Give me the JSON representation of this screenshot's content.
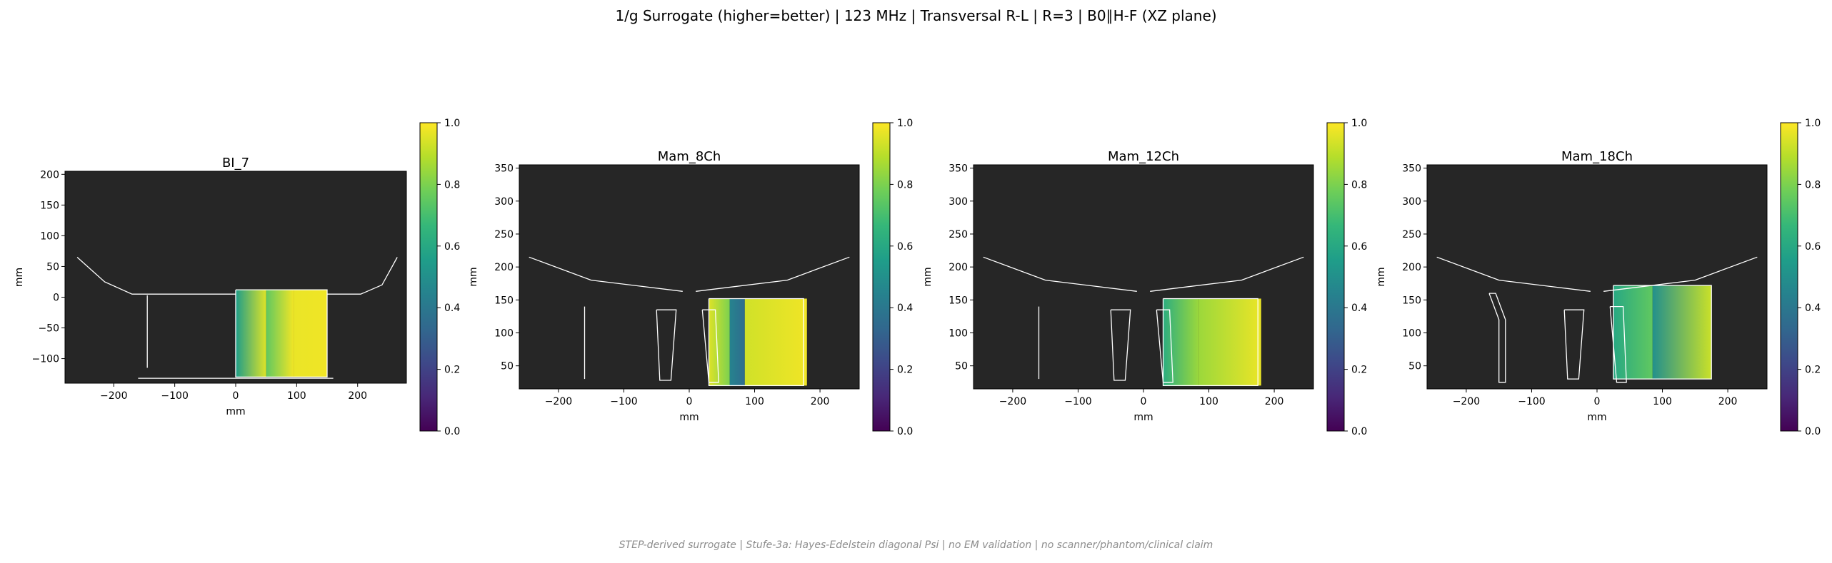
{
  "figure": {
    "suptitle": "1/g Surrogate (higher=better) | 123 MHz | Transversal R-L | R=3 | B0∥H-F (XZ plane)",
    "footer": "STEP-derived surrogate | Stufe-3a: Hayes-Edelstein diagonal Psi | no EM validation | no scanner/phantom/clinical claim"
  },
  "colors": {
    "plot_background": "#262626",
    "coil_outline": "#ffffff",
    "colormap": "viridis",
    "viridis": [
      "#440154",
      "#482878",
      "#3e4989",
      "#31688e",
      "#26828e",
      "#1f9e89",
      "#35b779",
      "#6ece58",
      "#b5de2b",
      "#fde725"
    ]
  },
  "chart_data": [
    {
      "type": "heatmap",
      "title": "BI_7",
      "xlabel": "mm",
      "ylabel": "mm",
      "xlim": [
        -280,
        280
      ],
      "ylim": [
        -140,
        205
      ],
      "xticks": [
        "-200",
        "-100",
        "0",
        "100",
        "200"
      ],
      "yticks": [
        "-100",
        "-50",
        "0",
        "50",
        "100",
        "150",
        "200"
      ],
      "xtick_values": [
        -200,
        -100,
        0,
        100,
        200
      ],
      "ytick_values": [
        -100,
        -50,
        0,
        50,
        100,
        150,
        200
      ],
      "colorbar": {
        "range": [
          0.0,
          1.0
        ],
        "ticks": [
          "0.0",
          "0.2",
          "0.4",
          "0.6",
          "0.8",
          "1.0"
        ]
      },
      "map_region": {
        "x": [
          0,
          150
        ],
        "y": [
          -130,
          12
        ]
      },
      "map_regions": [
        {
          "x": [
            0,
            50
          ],
          "stops": [
            0.55,
            0.95
          ]
        },
        {
          "x": [
            50,
            95
          ],
          "stops": [
            0.75,
            0.98
          ]
        },
        {
          "x": [
            95,
            150
          ],
          "stops": [
            0.97,
            0.98
          ]
        }
      ],
      "map_mean_value": 0.85,
      "coil_outlines": [
        [
          [
            -260,
            65
          ],
          [
            -215,
            25
          ],
          [
            -170,
            5
          ],
          [
            0,
            5
          ]
        ],
        [
          [
            150,
            5
          ],
          [
            205,
            5
          ],
          [
            240,
            20
          ],
          [
            265,
            65
          ]
        ],
        [
          [
            -145,
            3
          ],
          [
            -145,
            -115
          ]
        ],
        [
          [
            -160,
            -132
          ],
          [
            160,
            -132
          ]
        ],
        [
          [
            0,
            12
          ],
          [
            150,
            12
          ],
          [
            150,
            -130
          ],
          [
            0,
            -130
          ],
          [
            0,
            12
          ]
        ]
      ]
    },
    {
      "type": "heatmap",
      "title": "Mam_8Ch",
      "xlabel": "mm",
      "ylabel": "mm",
      "xlim": [
        -260,
        260
      ],
      "ylim": [
        15,
        355
      ],
      "xticks": [
        "-200",
        "-100",
        "0",
        "100",
        "200"
      ],
      "yticks": [
        "50",
        "100",
        "150",
        "200",
        "250",
        "300",
        "350"
      ],
      "xtick_values": [
        -200,
        -100,
        0,
        100,
        200
      ],
      "ytick_values": [
        50,
        100,
        150,
        200,
        250,
        300,
        350
      ],
      "colorbar": {
        "range": [
          0.0,
          1.0
        ],
        "ticks": [
          "0.0",
          "0.2",
          "0.4",
          "0.6",
          "0.8",
          "1.0"
        ]
      },
      "map_region": {
        "x": [
          30,
          180
        ],
        "y": [
          20,
          152
        ]
      },
      "map_regions": [
        {
          "x": [
            30,
            62
          ],
          "stops": [
            0.95,
            0.8
          ]
        },
        {
          "x": [
            62,
            85
          ],
          "stops": [
            0.45,
            0.35
          ]
        },
        {
          "x": [
            85,
            180
          ],
          "stops": [
            0.93,
            0.98
          ]
        }
      ],
      "map_mean_value": 0.9,
      "coil_outlines": [
        [
          [
            -245,
            215
          ],
          [
            -150,
            180
          ],
          [
            -10,
            163
          ]
        ],
        [
          [
            10,
            163
          ],
          [
            150,
            180
          ],
          [
            245,
            215
          ]
        ],
        [
          [
            -160,
            140
          ],
          [
            -160,
            30
          ]
        ],
        [
          [
            -50,
            135
          ],
          [
            -20,
            135
          ],
          [
            -28,
            28
          ],
          [
            -45,
            28
          ],
          [
            -50,
            135
          ]
        ],
        [
          [
            20,
            135
          ],
          [
            40,
            135
          ],
          [
            45,
            25
          ],
          [
            30,
            25
          ],
          [
            20,
            135
          ]
        ],
        [
          [
            30,
            152
          ],
          [
            175,
            152
          ],
          [
            175,
            20
          ],
          [
            30,
            20
          ],
          [
            30,
            152
          ]
        ]
      ]
    },
    {
      "type": "heatmap",
      "title": "Mam_12Ch",
      "xlabel": "mm",
      "ylabel": "mm",
      "xlim": [
        -260,
        260
      ],
      "ylim": [
        15,
        355
      ],
      "xticks": [
        "-200",
        "-100",
        "0",
        "100",
        "200"
      ],
      "yticks": [
        "50",
        "100",
        "150",
        "200",
        "250",
        "300",
        "350"
      ],
      "xtick_values": [
        -200,
        -100,
        0,
        100,
        200
      ],
      "ytick_values": [
        50,
        100,
        150,
        200,
        250,
        300,
        350
      ],
      "colorbar": {
        "range": [
          0.0,
          1.0
        ],
        "ticks": [
          "0.0",
          "0.2",
          "0.4",
          "0.6",
          "0.8",
          "1.0"
        ]
      },
      "map_region": {
        "x": [
          30,
          180
        ],
        "y": [
          20,
          152
        ]
      },
      "map_regions": [
        {
          "x": [
            30,
            85
          ],
          "stops": [
            0.62,
            0.85
          ]
        },
        {
          "x": [
            85,
            180
          ],
          "stops": [
            0.85,
            0.97
          ]
        }
      ],
      "map_mean_value": 0.85,
      "coil_outlines": [
        [
          [
            -245,
            215
          ],
          [
            -150,
            180
          ],
          [
            -10,
            163
          ]
        ],
        [
          [
            10,
            163
          ],
          [
            150,
            180
          ],
          [
            245,
            215
          ]
        ],
        [
          [
            -160,
            140
          ],
          [
            -160,
            30
          ]
        ],
        [
          [
            -50,
            135
          ],
          [
            -20,
            135
          ],
          [
            -28,
            28
          ],
          [
            -45,
            28
          ],
          [
            -50,
            135
          ]
        ],
        [
          [
            20,
            135
          ],
          [
            40,
            135
          ],
          [
            45,
            25
          ],
          [
            30,
            25
          ],
          [
            20,
            135
          ]
        ],
        [
          [
            30,
            152
          ],
          [
            175,
            152
          ],
          [
            175,
            20
          ],
          [
            30,
            20
          ],
          [
            30,
            152
          ]
        ]
      ]
    },
    {
      "type": "heatmap",
      "title": "Mam_18Ch",
      "xlabel": "mm",
      "ylabel": "mm",
      "xlim": [
        -260,
        260
      ],
      "ylim": [
        15,
        355
      ],
      "xticks": [
        "-200",
        "-100",
        "0",
        "100",
        "200"
      ],
      "yticks": [
        "50",
        "100",
        "150",
        "200",
        "250",
        "300",
        "350"
      ],
      "xtick_values": [
        -200,
        -100,
        0,
        100,
        200
      ],
      "ytick_values": [
        50,
        100,
        150,
        200,
        250,
        300,
        350
      ],
      "colorbar": {
        "range": [
          0.0,
          1.0
        ],
        "ticks": [
          "0.0",
          "0.2",
          "0.4",
          "0.6",
          "0.8",
          "1.0"
        ]
      },
      "map_region": {
        "x": [
          25,
          175
        ],
        "y": [
          30,
          172
        ]
      },
      "map_regions": [
        {
          "x": [
            25,
            85
          ],
          "stops": [
            0.6,
            0.75
          ]
        },
        {
          "x": [
            85,
            175
          ],
          "stops": [
            0.5,
            0.92
          ]
        }
      ],
      "map_mean_value": 0.7,
      "coil_outlines": [
        [
          [
            -245,
            215
          ],
          [
            -150,
            180
          ],
          [
            -10,
            163
          ]
        ],
        [
          [
            10,
            163
          ],
          [
            150,
            180
          ],
          [
            245,
            215
          ]
        ],
        [
          [
            -165,
            160
          ],
          [
            -150,
            120
          ],
          [
            -150,
            25
          ],
          [
            -140,
            25
          ],
          [
            -140,
            120
          ],
          [
            -155,
            160
          ],
          [
            -165,
            160
          ]
        ],
        [
          [
            -50,
            135
          ],
          [
            -20,
            135
          ],
          [
            -28,
            30
          ],
          [
            -45,
            30
          ],
          [
            -50,
            135
          ]
        ],
        [
          [
            20,
            140
          ],
          [
            40,
            140
          ],
          [
            45,
            25
          ],
          [
            30,
            25
          ],
          [
            20,
            140
          ]
        ],
        [
          [
            25,
            172
          ],
          [
            175,
            172
          ],
          [
            175,
            30
          ],
          [
            25,
            30
          ],
          [
            25,
            172
          ]
        ]
      ]
    }
  ]
}
